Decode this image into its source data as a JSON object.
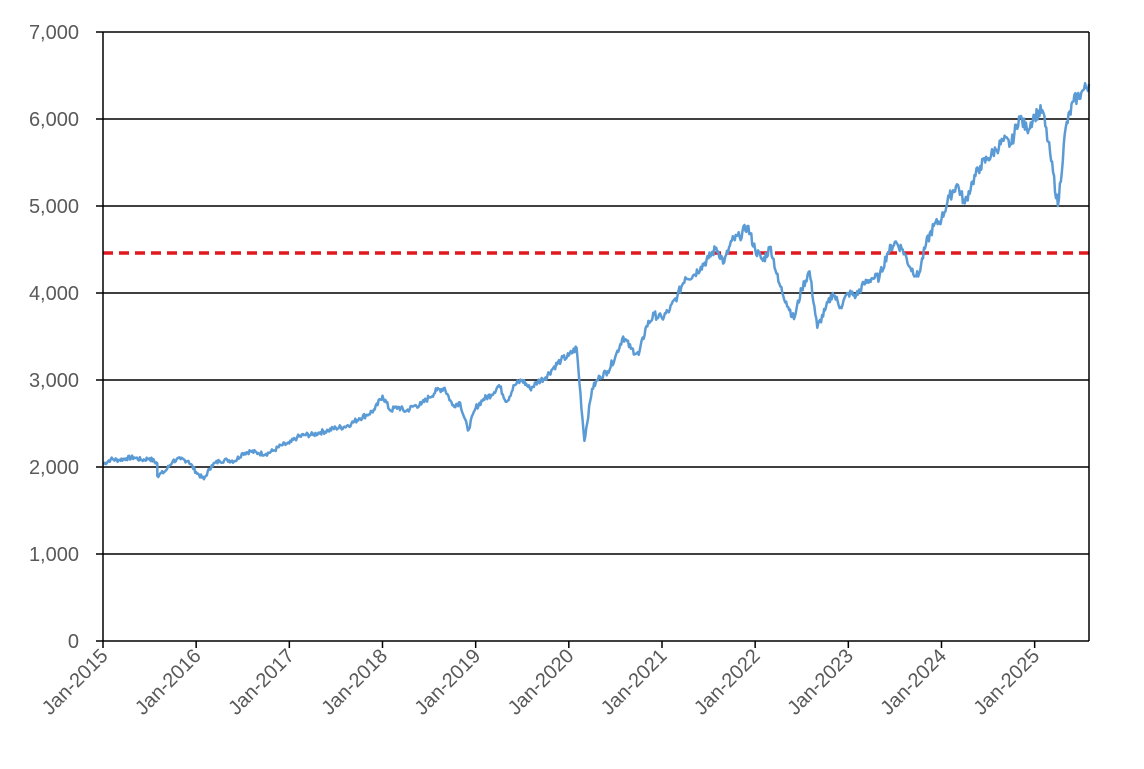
{
  "chart_data": {
    "type": "line",
    "title": "",
    "xlabel": "",
    "ylabel": "",
    "ylim": [
      0,
      7000
    ],
    "yticks": [
      0,
      1000,
      2000,
      3000,
      4000,
      5000,
      6000,
      7000
    ],
    "ytick_labels": [
      "0",
      "1,000",
      "2,000",
      "3,000",
      "4,000",
      "5,000",
      "6,000",
      "7,000"
    ],
    "xlim": [
      "2015-01",
      "2025-08"
    ],
    "xtick_labels": [
      "Jan-2015",
      "Jan-2016",
      "Jan-2017",
      "Jan-2018",
      "Jan-2019",
      "Jan-2020",
      "Jan-2021",
      "Jan-2022",
      "Jan-2023",
      "Jan-2024",
      "Jan-2025"
    ],
    "grid": "horizontal",
    "legend": "none",
    "reference_line": {
      "value": 4460,
      "style": "dashed",
      "color": "#e0191e"
    },
    "series": [
      {
        "color": "#5b9bd5",
        "points": [
          [
            "2015-01",
            2030
          ],
          [
            "2015-02",
            2090
          ],
          [
            "2015-03",
            2080
          ],
          [
            "2015-04",
            2100
          ],
          [
            "2015-05",
            2110
          ],
          [
            "2015-06",
            2080
          ],
          [
            "2015-07",
            2100
          ],
          [
            "2015-08",
            2040
          ],
          [
            "2015-08",
            1900
          ],
          [
            "2015-09",
            1950
          ],
          [
            "2015-10",
            2070
          ],
          [
            "2015-11",
            2090
          ],
          [
            "2015-12",
            2070
          ],
          [
            "2016-01",
            1940
          ],
          [
            "2016-02",
            1860
          ],
          [
            "2016-03",
            2020
          ],
          [
            "2016-04",
            2070
          ],
          [
            "2016-05",
            2080
          ],
          [
            "2016-06",
            2070
          ],
          [
            "2016-07",
            2160
          ],
          [
            "2016-08",
            2180
          ],
          [
            "2016-09",
            2160
          ],
          [
            "2016-10",
            2150
          ],
          [
            "2016-11",
            2190
          ],
          [
            "2016-12",
            2250
          ],
          [
            "2017-01",
            2270
          ],
          [
            "2017-02",
            2340
          ],
          [
            "2017-03",
            2370
          ],
          [
            "2017-04",
            2370
          ],
          [
            "2017-05",
            2400
          ],
          [
            "2017-06",
            2420
          ],
          [
            "2017-07",
            2450
          ],
          [
            "2017-08",
            2460
          ],
          [
            "2017-09",
            2500
          ],
          [
            "2017-10",
            2560
          ],
          [
            "2017-11",
            2600
          ],
          [
            "2017-12",
            2660
          ],
          [
            "2018-01",
            2820
          ],
          [
            "2018-02",
            2650
          ],
          [
            "2018-03",
            2690
          ],
          [
            "2018-04",
            2640
          ],
          [
            "2018-05",
            2700
          ],
          [
            "2018-06",
            2720
          ],
          [
            "2018-07",
            2800
          ],
          [
            "2018-08",
            2880
          ],
          [
            "2018-09",
            2910
          ],
          [
            "2018-10",
            2710
          ],
          [
            "2018-11",
            2740
          ],
          [
            "2018-12",
            2420
          ],
          [
            "2019-01",
            2680
          ],
          [
            "2019-02",
            2780
          ],
          [
            "2019-03",
            2830
          ],
          [
            "2019-04",
            2940
          ],
          [
            "2019-05",
            2750
          ],
          [
            "2019-06",
            2940
          ],
          [
            "2019-07",
            3000
          ],
          [
            "2019-08",
            2900
          ],
          [
            "2019-09",
            2980
          ],
          [
            "2019-10",
            3030
          ],
          [
            "2019-11",
            3140
          ],
          [
            "2019-12",
            3230
          ],
          [
            "2020-01",
            3280
          ],
          [
            "2020-02",
            3370
          ],
          [
            "2020-03",
            2300
          ],
          [
            "2020-04",
            2900
          ],
          [
            "2020-05",
            3040
          ],
          [
            "2020-06",
            3100
          ],
          [
            "2020-07",
            3270
          ],
          [
            "2020-08",
            3500
          ],
          [
            "2020-09",
            3360
          ],
          [
            "2020-10",
            3290
          ],
          [
            "2020-11",
            3620
          ],
          [
            "2020-12",
            3750
          ],
          [
            "2021-01",
            3710
          ],
          [
            "2021-02",
            3810
          ],
          [
            "2021-03",
            3970
          ],
          [
            "2021-04",
            4180
          ],
          [
            "2021-05",
            4200
          ],
          [
            "2021-06",
            4300
          ],
          [
            "2021-07",
            4400
          ],
          [
            "2021-08",
            4520
          ],
          [
            "2021-09",
            4350
          ],
          [
            "2021-10",
            4600
          ],
          [
            "2021-11",
            4650
          ],
          [
            "2021-12",
            4770
          ],
          [
            "2022-01",
            4500
          ],
          [
            "2022-02",
            4370
          ],
          [
            "2022-03",
            4530
          ],
          [
            "2022-04",
            4130
          ],
          [
            "2022-05",
            3900
          ],
          [
            "2022-06",
            3700
          ],
          [
            "2022-07",
            4050
          ],
          [
            "2022-08",
            4250
          ],
          [
            "2022-09",
            3600
          ],
          [
            "2022-10",
            3800
          ],
          [
            "2022-11",
            4000
          ],
          [
            "2022-12",
            3840
          ],
          [
            "2023-01",
            4000
          ],
          [
            "2023-02",
            3970
          ],
          [
            "2023-03",
            4100
          ],
          [
            "2023-04",
            4170
          ],
          [
            "2023-05",
            4180
          ],
          [
            "2023-06",
            4450
          ],
          [
            "2023-07",
            4590
          ],
          [
            "2023-08",
            4500
          ],
          [
            "2023-09",
            4290
          ],
          [
            "2023-10",
            4190
          ],
          [
            "2023-11",
            4560
          ],
          [
            "2023-12",
            4770
          ],
          [
            "2024-01",
            4850
          ],
          [
            "2024-02",
            5100
          ],
          [
            "2024-03",
            5250
          ],
          [
            "2024-04",
            5030
          ],
          [
            "2024-05",
            5280
          ],
          [
            "2024-06",
            5460
          ],
          [
            "2024-07",
            5550
          ],
          [
            "2024-08",
            5650
          ],
          [
            "2024-09",
            5750
          ],
          [
            "2024-10",
            5710
          ],
          [
            "2024-11",
            6030
          ],
          [
            "2024-12",
            5880
          ],
          [
            "2025-01",
            6040
          ],
          [
            "2025-02",
            6100
          ],
          [
            "2025-03",
            5600
          ],
          [
            "2025-04",
            5000
          ],
          [
            "2025-05",
            5900
          ],
          [
            "2025-06",
            6200
          ],
          [
            "2025-07",
            6300
          ],
          [
            "2025-08",
            6400
          ]
        ]
      }
    ]
  }
}
